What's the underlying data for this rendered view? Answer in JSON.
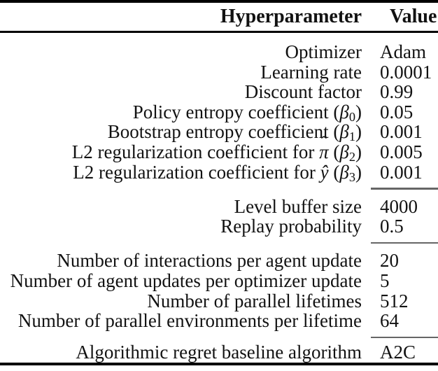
{
  "colors": {
    "background": "#ffffff",
    "text": "#121212",
    "heavy_rule": "#000000",
    "column_rule": "#666666"
  },
  "table": {
    "header": {
      "hyperparameter": "Hyperparameter",
      "value": "Value"
    },
    "groups": [
      {
        "rows": [
          {
            "label": "Optimizer",
            "value": "Adam"
          },
          {
            "label": "Learning rate",
            "value": "0.0001"
          },
          {
            "label": "Discount factor",
            "value": "0.99"
          },
          {
            "prefix": "Policy entropy coefficient (",
            "beta": "β",
            "sub": "0",
            "close": ")",
            "value": "0.05"
          },
          {
            "prefix": "Bootstrap entropy coefficient (",
            "beta": "β",
            "sub": "1",
            "close": ")",
            "value": "0.001"
          },
          {
            "prefix": "L2 regularization coefficient for ",
            "pi": "π",
            "hat": "ˆ",
            "mid": " (",
            "beta": "β",
            "sub": "2",
            "close": ")",
            "value": "0.005"
          },
          {
            "prefix": "L2 regularization coefficient for ",
            "yhat": "ŷ",
            "mid": " (",
            "beta": "β",
            "sub": "3",
            "close": ")",
            "value": "0.001"
          }
        ]
      },
      {
        "rows": [
          {
            "label": "Level buffer size",
            "value": "4000"
          },
          {
            "label": "Replay probability",
            "value": "0.5"
          }
        ]
      },
      {
        "rows": [
          {
            "label": "Number of interactions per agent update",
            "value": "20"
          },
          {
            "label": "Number of agent updates per optimizer update",
            "value": "5"
          },
          {
            "label": "Number of parallel lifetimes",
            "value": "512"
          },
          {
            "label": "Number of parallel environments per lifetime",
            "value": "64"
          }
        ]
      },
      {
        "rows": [
          {
            "label": "Algorithmic regret baseline algorithm",
            "value": "A2C"
          }
        ]
      }
    ]
  }
}
